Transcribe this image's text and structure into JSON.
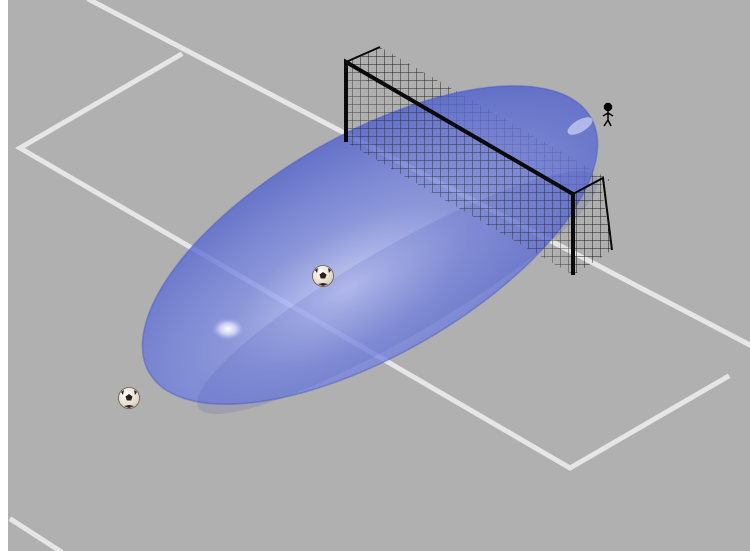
{
  "scene": {
    "description_none": "",
    "colors": {
      "pitch": "#b0b0b0",
      "pitch_lines": "#e4e4e4",
      "balloon": "#5a6fd6",
      "goal_frame": "#0a0a0a",
      "goal_net": "#1a1a1a",
      "ball_white": "#f4efe6",
      "ball_black": "#2a1f1a"
    },
    "objects": {
      "pitch": "grey-pitch-surface",
      "markings": "white-field-lines",
      "airship": "translucent-blue-ellipsoid",
      "goal": "black-goal-with-net",
      "balls": [
        "soccer-ball",
        "soccer-ball"
      ],
      "figure": "stick-figure"
    }
  }
}
